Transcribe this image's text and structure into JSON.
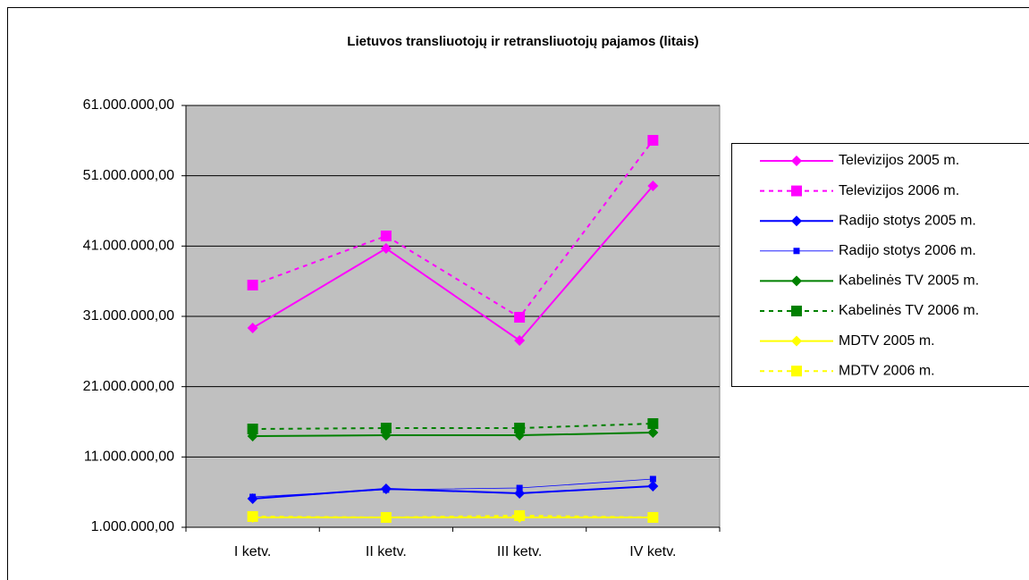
{
  "chart_data": {
    "type": "line",
    "title": "Lietuvos transliuotojų ir retransliuotojų pajamos (litais)",
    "categories": [
      "I ketv.",
      "II ketv.",
      "III ketv.",
      "IV ketv."
    ],
    "ylim": [
      1000000,
      61000000
    ],
    "yticks": [
      {
        "value": 1000000,
        "label": "1.000.000,00"
      },
      {
        "value": 11000000,
        "label": "11.000.000,00"
      },
      {
        "value": 21000000,
        "label": "21.000.000,00"
      },
      {
        "value": 31000000,
        "label": "31.000.000,00"
      },
      {
        "value": 41000000,
        "label": "41.000.000,00"
      },
      {
        "value": 51000000,
        "label": "51.000.000,00"
      },
      {
        "value": 61000000,
        "label": "61.000.000,00"
      }
    ],
    "grid": true,
    "legend": "right",
    "series": [
      {
        "name": "Televizijos 2005 m.",
        "color": "#ff00ff",
        "line_style": "solid",
        "marker": "diamond",
        "values": [
          29350000,
          40660000,
          27570000,
          49560000
        ]
      },
      {
        "name": "Televizijos 2006 m.",
        "color": "#ff00ff",
        "line_style": "dashed",
        "marker": "square",
        "values": [
          35450000,
          42440000,
          30870000,
          56040000
        ]
      },
      {
        "name": "Radijo stotys 2005 m.",
        "color": "#0000ff",
        "line_style": "solid",
        "marker": "diamond",
        "values": [
          5070000,
          6470000,
          5830000,
          6850000
        ]
      },
      {
        "name": "Radijo stotys 2006 m.",
        "color": "#0000ff",
        "line_style": "thin",
        "marker": "small-square",
        "values": [
          5320000,
          6340000,
          6590000,
          7860000
        ]
      },
      {
        "name": "Kabelinės TV 2005 m.",
        "color": "#008000",
        "line_style": "solid",
        "marker": "diamond",
        "values": [
          13970000,
          14090000,
          14090000,
          14470000
        ]
      },
      {
        "name": "Kabelinės TV 2006 m.",
        "color": "#008000",
        "line_style": "dashed",
        "marker": "square",
        "values": [
          14980000,
          15110000,
          15110000,
          15750000
        ]
      },
      {
        "name": "MDTV 2005 m.",
        "color": "#ffff00",
        "line_style": "solid",
        "marker": "diamond",
        "values": [
          2400000,
          2400000,
          2400000,
          2400000
        ]
      },
      {
        "name": "MDTV 2006 m.",
        "color": "#ffff00",
        "line_style": "dashed",
        "marker": "square",
        "values": [
          2530000,
          2400000,
          2660000,
          2400000
        ]
      }
    ]
  }
}
